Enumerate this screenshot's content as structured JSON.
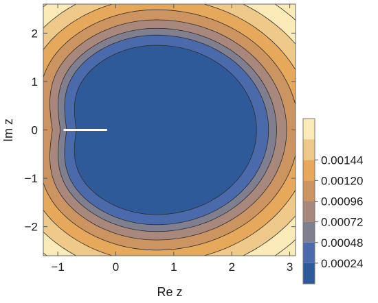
{
  "chart_data": {
    "type": "contour",
    "title": "",
    "xlabel": "Re z",
    "ylabel": "Im z",
    "xlim": [
      -1.25,
      3.1
    ],
    "ylim": [
      -2.6,
      2.6
    ],
    "x_ticks": [
      -1,
      0,
      1,
      2,
      3
    ],
    "x_tick_labels": [
      "−1",
      "0",
      "1",
      "2",
      "3"
    ],
    "y_ticks": [
      -2,
      -1,
      0,
      1,
      2
    ],
    "y_tick_labels": [
      "−2",
      "−1",
      "0",
      "1",
      "2"
    ],
    "branch_cut": {
      "from": [
        -0.9,
        0
      ],
      "to": [
        -0.15,
        0
      ],
      "color": "#ffffff"
    },
    "contour_levels": [
      0.00024,
      0.00048,
      0.00072,
      0.00096,
      0.0012,
      0.00144
    ],
    "colorbar": {
      "ticks": [
        0.00024,
        0.00048,
        0.00072,
        0.00096,
        0.0012,
        0.00144
      ],
      "tick_labels": [
        "0.00024",
        "0.00048",
        "0.00072",
        "0.00096",
        "0.00120",
        "0.00144"
      ],
      "colors": [
        "#2e5a9a",
        "#4b6aab",
        "#7f7f8f",
        "#a8887c",
        "#cc9460",
        "#e6a85a",
        "#efc98a",
        "#fbebb9"
      ]
    },
    "grid": false
  }
}
